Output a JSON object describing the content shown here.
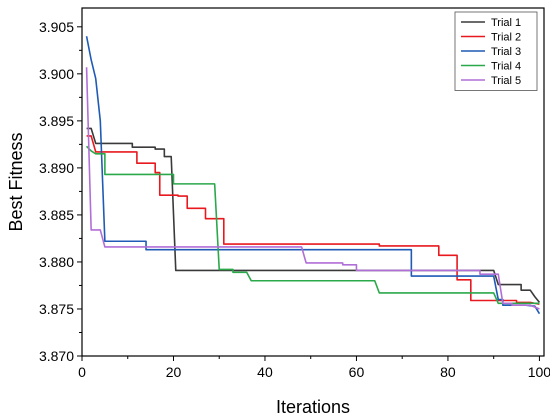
{
  "chart_data": {
    "type": "line",
    "title": "",
    "xlabel": "Iterations",
    "ylabel": "Best Fitness",
    "xlim": [
      0,
      101
    ],
    "ylim": [
      3.87,
      3.907
    ],
    "xticks": [
      0,
      20,
      40,
      60,
      80,
      100
    ],
    "yticks": [
      3.87,
      3.875,
      3.88,
      3.885,
      3.89,
      3.895,
      3.9,
      3.905
    ],
    "xtick_labels": [
      "0",
      "20",
      "40",
      "60",
      "80",
      "100"
    ],
    "ytick_labels": [
      "3.870",
      "3.875",
      "3.880",
      "3.885",
      "3.890",
      "3.895",
      "3.900",
      "3.905"
    ],
    "grid": false,
    "legend_position": "top-right",
    "series": [
      {
        "name": "Trial 1",
        "color": "#3a3a3a",
        "points": [
          [
            1,
            3.8942
          ],
          [
            2,
            3.8942
          ],
          [
            3,
            3.8926
          ],
          [
            11,
            3.8926
          ],
          [
            11,
            3.8922
          ],
          [
            16,
            3.8922
          ],
          [
            16,
            3.892
          ],
          [
            18,
            3.892
          ],
          [
            18,
            3.8912
          ],
          [
            19.5,
            3.8912
          ],
          [
            20.5,
            3.8791
          ],
          [
            30,
            3.8791
          ],
          [
            30,
            3.8791
          ],
          [
            72,
            3.8791
          ],
          [
            72,
            3.8791
          ],
          [
            90,
            3.8791
          ],
          [
            91,
            3.8776
          ],
          [
            96,
            3.8776
          ],
          [
            96,
            3.877
          ],
          [
            98,
            3.877
          ],
          [
            99,
            3.8763
          ],
          [
            100,
            3.8757
          ]
        ]
      },
      {
        "name": "Trial 2",
        "color": "#e8191e",
        "points": [
          [
            1,
            3.8934
          ],
          [
            2,
            3.8934
          ],
          [
            3,
            3.8917
          ],
          [
            12,
            3.8917
          ],
          [
            12,
            3.8905
          ],
          [
            16,
            3.8905
          ],
          [
            16,
            3.8895
          ],
          [
            17,
            3.8895
          ],
          [
            17,
            3.8871
          ],
          [
            21,
            3.8871
          ],
          [
            21,
            3.887
          ],
          [
            23,
            3.887
          ],
          [
            23,
            3.8857
          ],
          [
            27,
            3.8857
          ],
          [
            27,
            3.8846
          ],
          [
            31,
            3.8846
          ],
          [
            31,
            3.8819
          ],
          [
            65,
            3.8819
          ],
          [
            65,
            3.8817
          ],
          [
            78,
            3.8817
          ],
          [
            78,
            3.8807
          ],
          [
            82,
            3.8807
          ],
          [
            82,
            3.8781
          ],
          [
            85,
            3.8781
          ],
          [
            85,
            3.8759
          ],
          [
            95,
            3.8759
          ],
          [
            95,
            3.8757
          ],
          [
            98,
            3.8757
          ],
          [
            100,
            3.8755
          ]
        ]
      },
      {
        "name": "Trial 3",
        "color": "#1f5ab5",
        "points": [
          [
            1,
            3.904
          ],
          [
            2,
            3.9015
          ],
          [
            3,
            3.8995
          ],
          [
            4,
            3.895
          ],
          [
            5,
            3.8822
          ],
          [
            14,
            3.8822
          ],
          [
            14,
            3.8813
          ],
          [
            72,
            3.8813
          ],
          [
            72,
            3.8785
          ],
          [
            90,
            3.8785
          ],
          [
            91,
            3.876
          ],
          [
            92,
            3.876
          ],
          [
            92,
            3.8754
          ],
          [
            97,
            3.8754
          ],
          [
            99,
            3.8753
          ],
          [
            100,
            3.8745
          ]
        ]
      },
      {
        "name": "Trial 4",
        "color": "#2aa84a",
        "points": [
          [
            1,
            3.8923
          ],
          [
            2,
            3.8918
          ],
          [
            3,
            3.8915
          ],
          [
            5,
            3.8915
          ],
          [
            5,
            3.8893
          ],
          [
            20,
            3.8893
          ],
          [
            20,
            3.8883
          ],
          [
            29,
            3.8883
          ],
          [
            30,
            3.8792
          ],
          [
            33,
            3.8792
          ],
          [
            33,
            3.8789
          ],
          [
            36,
            3.8789
          ],
          [
            37,
            3.878
          ],
          [
            60,
            3.878
          ],
          [
            60,
            3.878
          ],
          [
            64,
            3.878
          ],
          [
            65,
            3.8767
          ],
          [
            90,
            3.8767
          ],
          [
            91,
            3.8756
          ],
          [
            100,
            3.8756
          ]
        ]
      },
      {
        "name": "Trial 5",
        "color": "#b06fd6",
        "points": [
          [
            1,
            3.9007
          ],
          [
            2,
            3.8834
          ],
          [
            4,
            3.8834
          ],
          [
            5,
            3.8816
          ],
          [
            48,
            3.8816
          ],
          [
            48,
            3.8816
          ],
          [
            49,
            3.8799
          ],
          [
            57,
            3.8799
          ],
          [
            57,
            3.8797
          ],
          [
            60,
            3.8797
          ],
          [
            60,
            3.8791
          ],
          [
            87,
            3.8791
          ],
          [
            87,
            3.8787
          ],
          [
            91,
            3.8787
          ],
          [
            92,
            3.8756
          ],
          [
            94,
            3.8756
          ],
          [
            94,
            3.8754
          ],
          [
            97,
            3.8754
          ],
          [
            98,
            3.8754
          ],
          [
            100,
            3.875
          ]
        ]
      }
    ]
  }
}
